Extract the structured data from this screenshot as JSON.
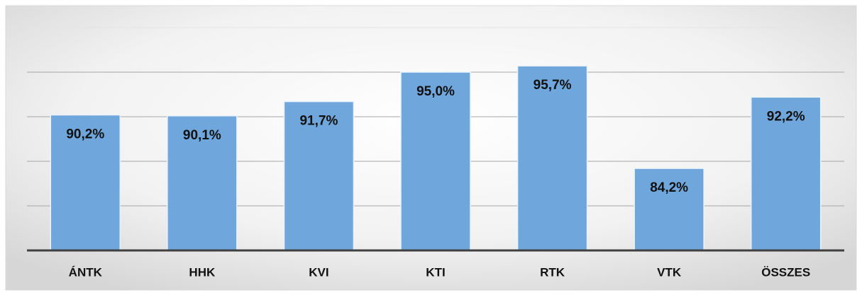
{
  "chart_data": {
    "type": "bar",
    "categories": [
      "ÁNTK",
      "HHK",
      "KVI",
      "KTI",
      "RTK",
      "VTK",
      "ÖSSZES"
    ],
    "values": [
      90.2,
      90.1,
      91.7,
      95.0,
      95.7,
      84.2,
      92.2
    ],
    "value_labels": [
      "90,2%",
      "90,1%",
      "91,7%",
      "95,0%",
      "95,7%",
      "84,2%",
      "92,2%"
    ],
    "color": "#6fa6dc",
    "ylim": [
      75,
      100
    ],
    "yticks": [
      75,
      80,
      85,
      90,
      95,
      100
    ],
    "grid": true
  }
}
